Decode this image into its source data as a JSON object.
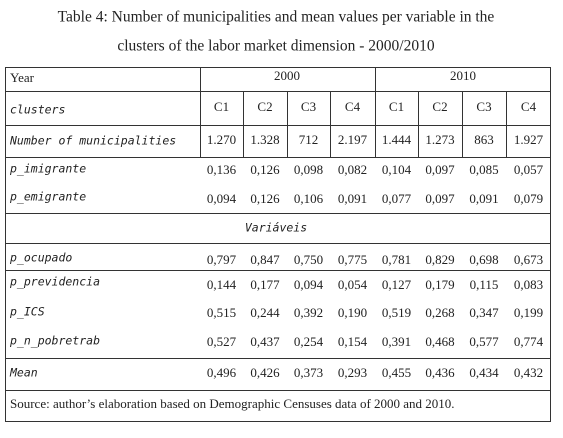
{
  "title": [
    "Table 4: Number of municipalities and mean values per variable in the",
    "clusters of the labor market dimension - 2000/2010"
  ],
  "table": {
    "year_label": "Year",
    "years": [
      "2000",
      "2010"
    ],
    "clusters_label": "clusters",
    "clusters": [
      "C1",
      "C2",
      "C3",
      "C4",
      "C1",
      "C2",
      "C3",
      "C4"
    ],
    "rows": [
      [
        "Number of municipalities",
        "1.270",
        "1.328",
        "712",
        "2.197",
        "1.444",
        "1.273",
        "863",
        "1.927"
      ],
      [
        "p_imigrante",
        "0,136",
        "0,126",
        "0,098",
        "0,082",
        "0,104",
        "0,097",
        "0,085",
        "0,057"
      ],
      [
        "p_emigrante",
        "0,094",
        "0,126",
        "0,106",
        "0,091",
        "0,077",
        "0,097",
        "0,091",
        "0,079"
      ],
      [
        "p_ocupado",
        "0,797",
        "0,847",
        "0,750",
        "0,775",
        "0,781",
        "0,829",
        "0,698",
        "0,673"
      ],
      [
        "p_previdencia",
        "0,144",
        "0,177",
        "0,094",
        "0,054",
        "0,127",
        "0,179",
        "0,115",
        "0,083"
      ],
      [
        "p_ICS",
        "0,515",
        "0,244",
        "0,392",
        "0,190",
        "0,519",
        "0,268",
        "0,347",
        "0,199"
      ],
      [
        "p_n_pobretrab",
        "0,527",
        "0,437",
        "0,254",
        "0,154",
        "0,391",
        "0,468",
        "0,577",
        "0,774"
      ],
      [
        "Mean",
        "0,496",
        "0,426",
        "0,373",
        "0,293",
        "0,455",
        "0,436",
        "0,434",
        "0,432"
      ]
    ],
    "section": "Variáveis",
    "source": "Source: author’s elaboration based on Demographic Censuses data of 2000 and 2010."
  }
}
